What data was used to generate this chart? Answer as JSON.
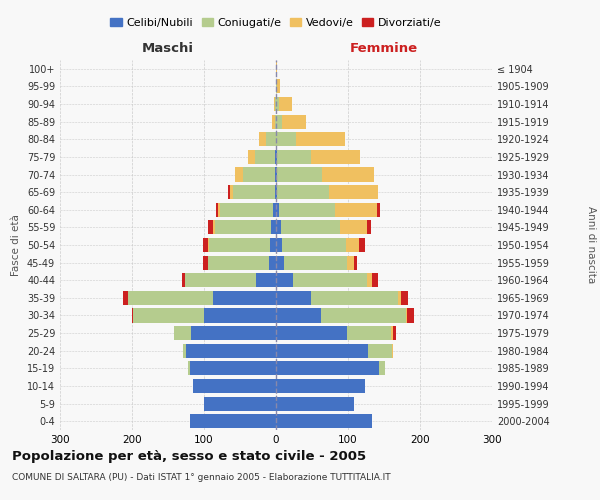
{
  "age_groups": [
    "0-4",
    "5-9",
    "10-14",
    "15-19",
    "20-24",
    "25-29",
    "30-34",
    "35-39",
    "40-44",
    "45-49",
    "50-54",
    "55-59",
    "60-64",
    "65-69",
    "70-74",
    "75-79",
    "80-84",
    "85-89",
    "90-94",
    "95-99",
    "100+"
  ],
  "birth_years": [
    "2000-2004",
    "1995-1999",
    "1990-1994",
    "1985-1989",
    "1980-1984",
    "1975-1979",
    "1970-1974",
    "1965-1969",
    "1960-1964",
    "1955-1959",
    "1950-1954",
    "1945-1949",
    "1940-1944",
    "1935-1939",
    "1930-1934",
    "1925-1929",
    "1920-1924",
    "1915-1919",
    "1910-1914",
    "1905-1909",
    "≤ 1904"
  ],
  "colors": {
    "celibi": "#4472C4",
    "coniugati": "#B5CC8E",
    "vedovi": "#F0C060",
    "divorziati": "#CC2020"
  },
  "males": {
    "celibi": [
      120,
      100,
      115,
      120,
      125,
      118,
      100,
      88,
      28,
      10,
      9,
      7,
      4,
      2,
      2,
      1,
      0,
      0,
      0,
      0,
      0
    ],
    "coniugati": [
      0,
      0,
      0,
      2,
      4,
      24,
      98,
      118,
      98,
      84,
      84,
      78,
      74,
      58,
      44,
      28,
      14,
      2,
      1,
      0,
      0
    ],
    "vedovi": [
      0,
      0,
      0,
      0,
      0,
      0,
      0,
      0,
      0,
      0,
      1,
      2,
      2,
      4,
      11,
      10,
      10,
      4,
      2,
      0,
      0
    ],
    "divorziati": [
      0,
      0,
      0,
      0,
      0,
      0,
      2,
      7,
      4,
      8,
      8,
      8,
      3,
      2,
      0,
      0,
      0,
      0,
      0,
      0,
      0
    ]
  },
  "females": {
    "nubili": [
      133,
      108,
      123,
      143,
      128,
      98,
      62,
      48,
      24,
      11,
      9,
      7,
      4,
      2,
      2,
      1,
      0,
      0,
      0,
      0,
      0
    ],
    "coniugate": [
      0,
      0,
      0,
      9,
      33,
      62,
      118,
      122,
      102,
      88,
      88,
      82,
      78,
      72,
      62,
      48,
      28,
      8,
      4,
      2,
      0
    ],
    "vedove": [
      0,
      0,
      0,
      0,
      1,
      2,
      2,
      4,
      7,
      9,
      18,
      38,
      58,
      68,
      72,
      68,
      68,
      33,
      18,
      3,
      2
    ],
    "divorziate": [
      0,
      0,
      0,
      0,
      1,
      4,
      9,
      9,
      9,
      4,
      8,
      5,
      4,
      0,
      0,
      0,
      0,
      0,
      0,
      0,
      0
    ]
  },
  "title": "Popolazione per età, sesso e stato civile - 2005",
  "subtitle": "COMUNE DI SALTARA (PU) - Dati ISTAT 1° gennaio 2005 - Elaborazione TUTTITALIA.IT",
  "ylabel_left": "Fasce di età",
  "ylabel_right": "Anni di nascita",
  "xlabel_left": "Maschi",
  "xlabel_right": "Femmine",
  "xlim": 300,
  "bg_color": "#f8f8f8",
  "grid_color": "#cccccc",
  "legend_labels": [
    "Celibi/Nubili",
    "Coniugati/e",
    "Vedovi/e",
    "Divorziati/e"
  ]
}
